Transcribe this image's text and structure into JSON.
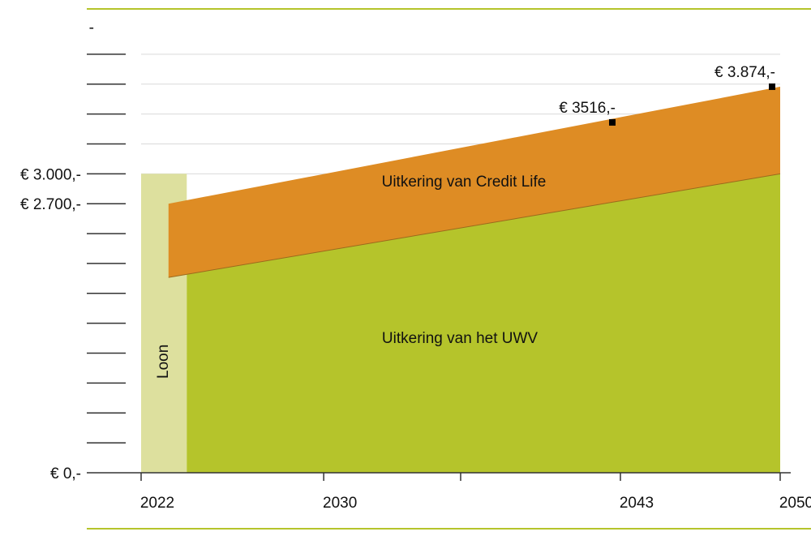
{
  "chart_data": {
    "type": "area",
    "x_ticks": [
      "2022",
      "2030",
      "2043",
      "2050"
    ],
    "y_tick_labels": [
      {
        "value": 4500,
        "label": "-"
      },
      {
        "value": 3000,
        "label": "€ 3.000,-"
      },
      {
        "value": 2700,
        "label": "€ 2.700,-"
      },
      {
        "value": 0,
        "label": "€ 0,-"
      }
    ],
    "y_gridlines": [
      0,
      300,
      600,
      900,
      1200,
      1500,
      1800,
      2100,
      2400,
      2700,
      3000,
      3300,
      3600,
      3900,
      4200,
      4500
    ],
    "ylim": [
      0,
      4500
    ],
    "xlim": [
      2022,
      2050
    ],
    "series": [
      {
        "name": "Loon",
        "color": "#dde09e",
        "x": [
          2022,
          2024
        ],
        "values": [
          3000,
          3000
        ]
      },
      {
        "name": "Uitkering van het UWV",
        "color": "#b5c42b",
        "x": [
          2024,
          2050
        ],
        "values": [
          2000,
          3000
        ]
      },
      {
        "name": "Uitkering van Credit Life",
        "color": "#de8c24",
        "x": [
          2023.2,
          2050
        ],
        "lower": [
          1960,
          3000
        ],
        "upper": [
          2700,
          3874
        ]
      }
    ],
    "labels": {
      "loon": "Loon",
      "uwv": "Uitkering van het UWV",
      "credit_life": "Uitkering van Credit Life"
    },
    "annotations": [
      {
        "text": "€ 3516,-",
        "x": 2043,
        "y": 3516
      },
      {
        "text": "€ 3.874,-",
        "x": 2050,
        "y": 3874
      }
    ],
    "frame_color": "#b5c42b"
  }
}
